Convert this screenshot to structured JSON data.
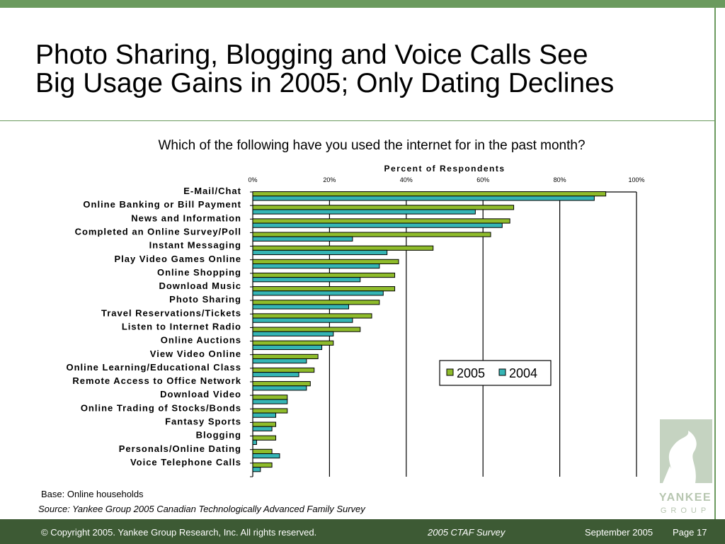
{
  "slide": {
    "title_line1": "Photo Sharing, Blogging and Voice Calls See",
    "title_line2": "Big Usage Gains in 2005; Only Dating Declines",
    "question": "Which of the following have you used the internet for in the past month?",
    "base_note": "Base: Online households",
    "source_note": "Source: Yankee Group 2005 Canadian Technologically Advanced Family Survey"
  },
  "footer": {
    "copyright": "© Copyright 2005. Yankee Group Research, Inc.  All rights reserved.",
    "survey": "2005 CTAF Survey",
    "date": "September 2005",
    "page": "Page 17"
  },
  "logo": {
    "line1": "YANKEE",
    "line2": "GROUP"
  },
  "colors": {
    "brand_green": "#6b9a5e",
    "footer_green": "#3d5a34",
    "series_2005": "#8fbc2b",
    "series_2004": "#35b5b5"
  },
  "chart_data": {
    "type": "bar",
    "orientation": "horizontal",
    "axis_title": "Percent of Respondents",
    "xlim": [
      0,
      100
    ],
    "ticks": [
      "0%",
      "20%",
      "40%",
      "60%",
      "80%",
      "100%"
    ],
    "legend_position": "right-middle",
    "grid": "vertical",
    "categories": [
      "E-Mail/Chat",
      "Online Banking or Bill Payment",
      "News and Information",
      "Completed an Online Survey/Poll",
      "Instant Messaging",
      "Play Video Games Online",
      "Online Shopping",
      "Download Music",
      "Photo Sharing",
      "Travel Reservations/Tickets",
      "Listen to Internet Radio",
      "Online Auctions",
      "View Video Online",
      "Online Learning/Educational Class",
      "Remote Access to Office Network",
      "Download Video",
      "Online Trading of Stocks/Bonds",
      "Fantasy Sports",
      "Blogging",
      "Personals/Online Dating",
      "Voice Telephone Calls"
    ],
    "series": [
      {
        "name": "2005",
        "color": "#8fbc2b",
        "values": [
          92,
          68,
          67,
          62,
          47,
          38,
          37,
          37,
          33,
          31,
          28,
          21,
          17,
          16,
          15,
          9,
          9,
          6,
          6,
          5,
          5
        ]
      },
      {
        "name": "2004",
        "color": "#35b5b5",
        "values": [
          89,
          58,
          65,
          26,
          35,
          33,
          28,
          34,
          25,
          26,
          21,
          18,
          14,
          12,
          14,
          9,
          6,
          5,
          1,
          7,
          2
        ]
      }
    ]
  }
}
